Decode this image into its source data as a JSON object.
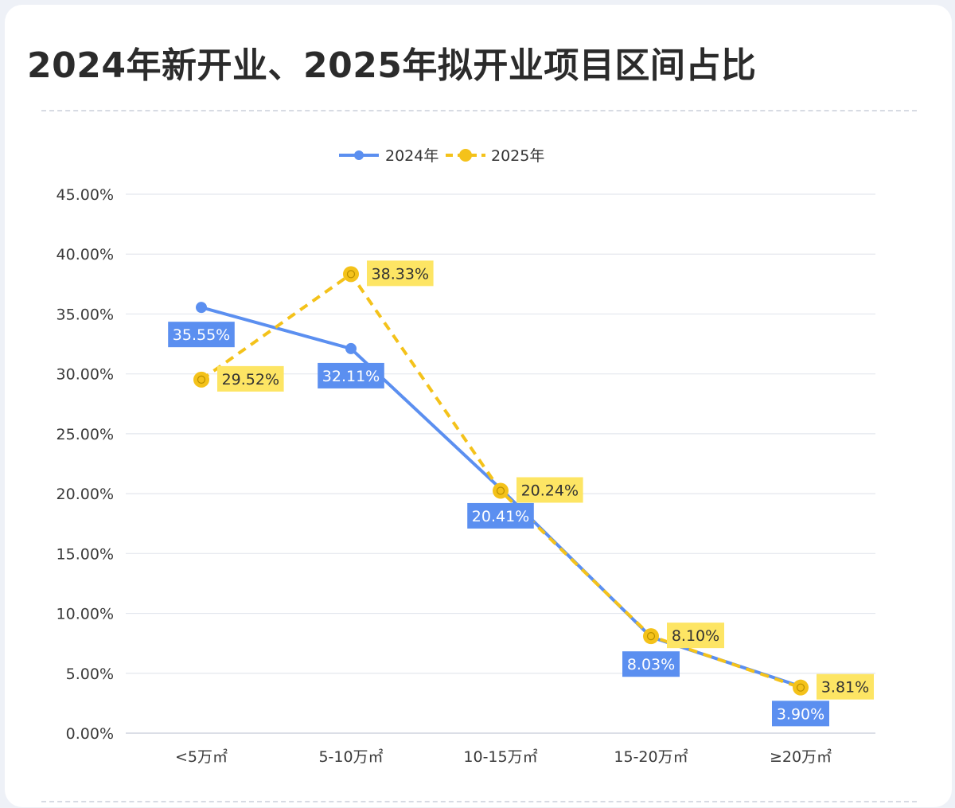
{
  "header": {
    "title": "2024年新开业、2025年拟开业项目区间占比"
  },
  "chart_data": {
    "type": "line",
    "title": "2024年新开业、2025年拟开业项目区间占比",
    "categories": [
      "<5万㎡",
      "5-10万㎡",
      "10-15万㎡",
      "15-20万㎡",
      "≥20万㎡"
    ],
    "series": [
      {
        "name": "2024年",
        "values": [
          35.55,
          32.11,
          20.41,
          8.03,
          3.9
        ],
        "labels": [
          "35.55%",
          "32.11%",
          "20.41%",
          "8.03%",
          "3.90%"
        ],
        "color": "#5b8ff0",
        "line_style": "solid",
        "label_position": "below"
      },
      {
        "name": "2025年",
        "values": [
          29.52,
          38.33,
          20.24,
          8.1,
          3.81
        ],
        "labels": [
          "29.52%",
          "38.33%",
          "20.24%",
          "8.10%",
          "3.81%"
        ],
        "color": "#f4c21a",
        "line_style": "dashed",
        "label_position": "right"
      }
    ],
    "y_ticks": [
      "0.00%",
      "5.00%",
      "10.00%",
      "15.00%",
      "20.00%",
      "25.00%",
      "30.00%",
      "35.00%",
      "40.00%",
      "45.00%"
    ],
    "ylim": [
      0,
      45
    ],
    "grid": true,
    "legend_position": "top-center"
  },
  "colors": {
    "series_2024": "#5b8ff0",
    "series_2025": "#f4c21a",
    "label_2024_bg": "#5b8ff0",
    "label_2025_bg": "#fde564",
    "grid": "#e4e7ee"
  }
}
